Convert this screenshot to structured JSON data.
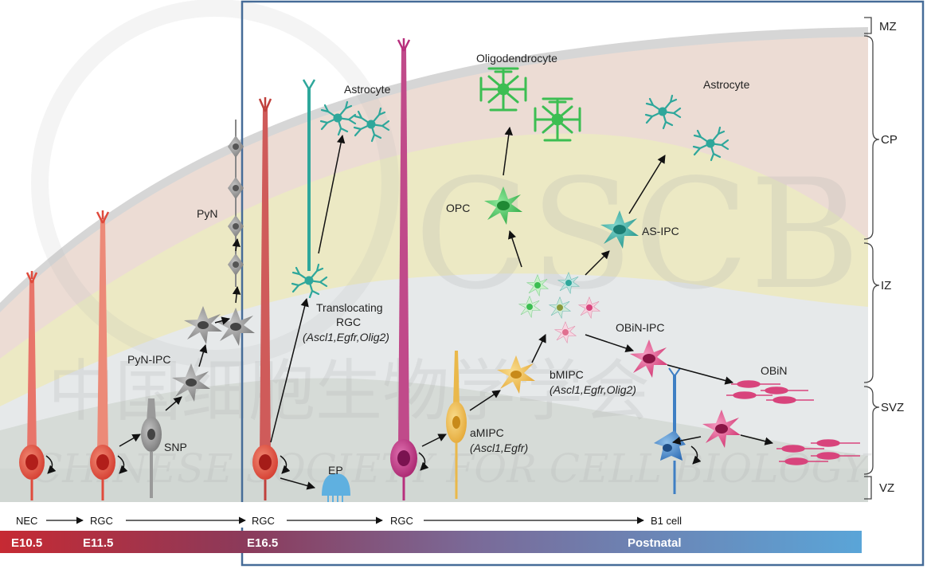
{
  "zones": {
    "mz": "MZ",
    "cp": "CP",
    "iz": "IZ",
    "svz": "SVZ",
    "vz": "VZ"
  },
  "cells": {
    "pyn": "PyN",
    "pyn_ipc": "PyN-IPC",
    "snp": "SNP",
    "ep": "EP",
    "astrocyte_left": "Astrocyte",
    "astrocyte_right": "Astrocyte",
    "oligodendrocyte": "Oligodendrocyte",
    "opc": "OPC",
    "as_ipc": "AS-IPC",
    "obin_ipc": "OBiN-IPC",
    "obin": "OBiN",
    "translocating_rgc_1": "Translocating",
    "translocating_rgc_2": "RGC",
    "translocating_rgc_3": "(Ascl1,Egfr,Olig2)",
    "bmipc_1": "bMIPC",
    "bmipc_2": "(Ascl1,Egfr,Olig2)",
    "amipc_1": "aMIPC",
    "amipc_2": "(Ascl1,Egfr)"
  },
  "lineage": {
    "nec": "NEC",
    "rgc_1": "RGC",
    "rgc_2": "RGC",
    "rgc_3": "RGC",
    "b1": "B1 cell"
  },
  "timeline": {
    "e105": "E10.5",
    "e115": "E11.5",
    "e165": "E16.5",
    "postnatal": "Postnatal"
  },
  "watermark": {
    "cn": "中国细胞生物学学会",
    "en": "CHINESE SOCIETY FOR CELL BIOLOGY",
    "logo": "CSCB"
  },
  "colors": {
    "nec_rgc": "#e04a3c",
    "pyn": "#8e8e8e",
    "astro": "#2ea79b",
    "oligo": "#3cbe52",
    "obin": "#d8447c",
    "amipc": "#eab84a",
    "b1": "#3f7fc4",
    "ep": "#5fb0e0",
    "rgc_magenta": "#b82f7d",
    "frame": "#466c98",
    "timeline_red": "#c62a33",
    "timeline_blue": "#5aa5d8"
  }
}
